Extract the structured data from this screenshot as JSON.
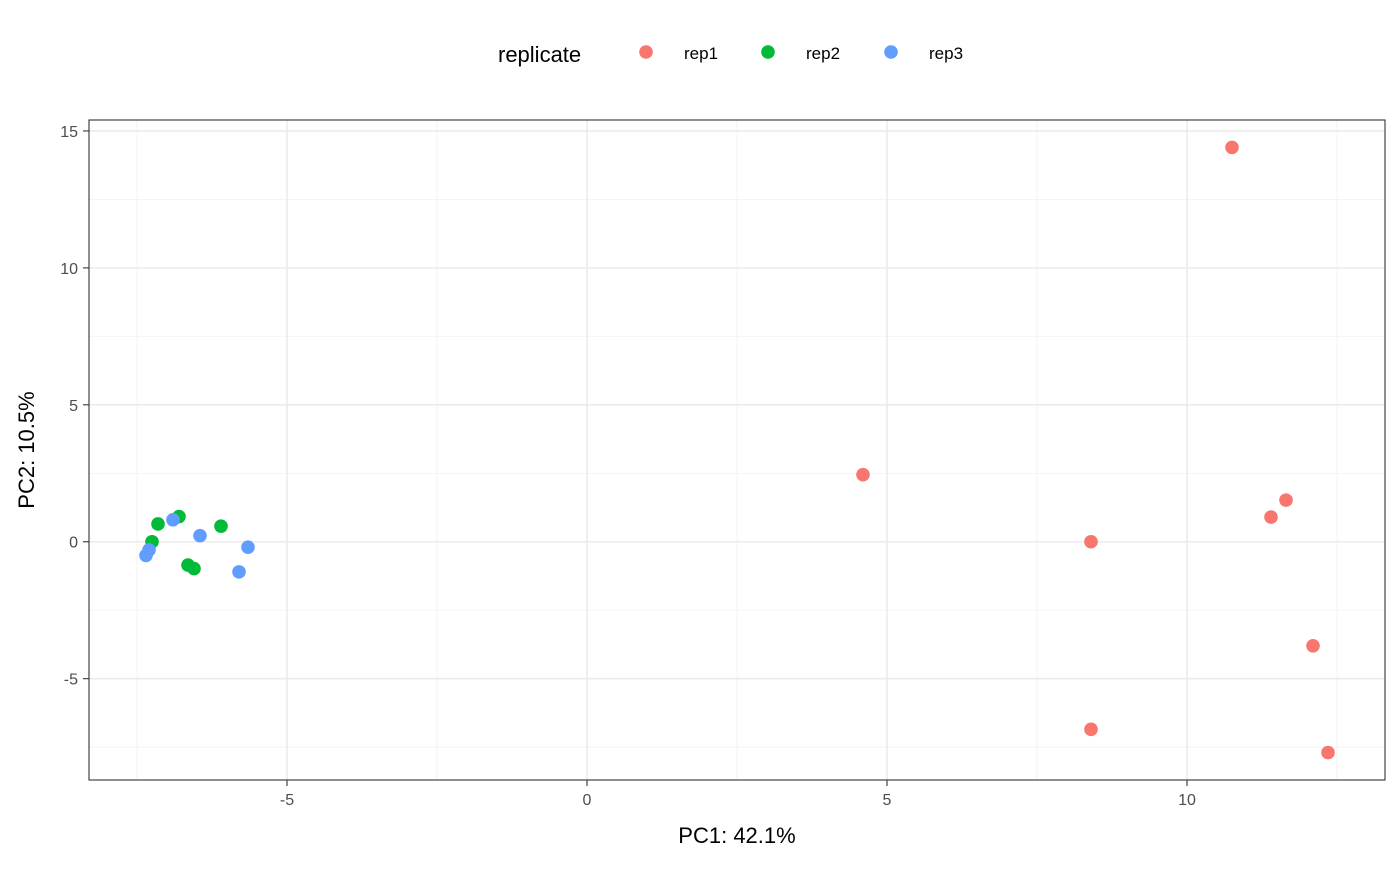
{
  "chart_data": {
    "type": "scatter",
    "title": "",
    "xlabel": "PC1: 42.1%",
    "ylabel": "PC2: 10.5%",
    "xlim": [
      -8.3,
      13.3
    ],
    "ylim": [
      -8.7,
      15.4
    ],
    "x_ticks": [
      -5,
      0,
      5,
      10
    ],
    "y_ticks": [
      -5,
      0,
      5,
      10,
      15
    ],
    "x_minor_ticks": [
      -7.5,
      -2.5,
      2.5,
      7.5,
      12.5
    ],
    "y_minor_ticks": [
      -7.5,
      -2.5,
      2.5,
      7.5,
      12.5
    ],
    "grid": true,
    "legend": {
      "title": "replicate",
      "position": "top"
    },
    "series": [
      {
        "name": "rep1",
        "color": "#F8766D",
        "points": [
          {
            "x": 10.75,
            "y": 14.4
          },
          {
            "x": 4.6,
            "y": 2.45
          },
          {
            "x": 11.65,
            "y": 1.52
          },
          {
            "x": 11.4,
            "y": 0.9
          },
          {
            "x": 8.4,
            "y": 0.0
          },
          {
            "x": 12.1,
            "y": -3.8
          },
          {
            "x": 8.4,
            "y": -6.85
          },
          {
            "x": 12.35,
            "y": -7.7
          }
        ]
      },
      {
        "name": "rep2",
        "color": "#00BA38",
        "points": [
          {
            "x": -6.8,
            "y": 0.92
          },
          {
            "x": -7.15,
            "y": 0.65
          },
          {
            "x": -6.1,
            "y": 0.57
          },
          {
            "x": -7.25,
            "y": 0.0
          },
          {
            "x": -6.65,
            "y": -0.85
          },
          {
            "x": -6.55,
            "y": -0.98
          }
        ]
      },
      {
        "name": "rep3",
        "color": "#619CFF",
        "points": [
          {
            "x": -6.9,
            "y": 0.8
          },
          {
            "x": -6.45,
            "y": 0.22
          },
          {
            "x": -5.65,
            "y": -0.2
          },
          {
            "x": -7.3,
            "y": -0.3
          },
          {
            "x": -7.35,
            "y": -0.5
          },
          {
            "x": -5.8,
            "y": -1.1
          }
        ]
      }
    ]
  }
}
